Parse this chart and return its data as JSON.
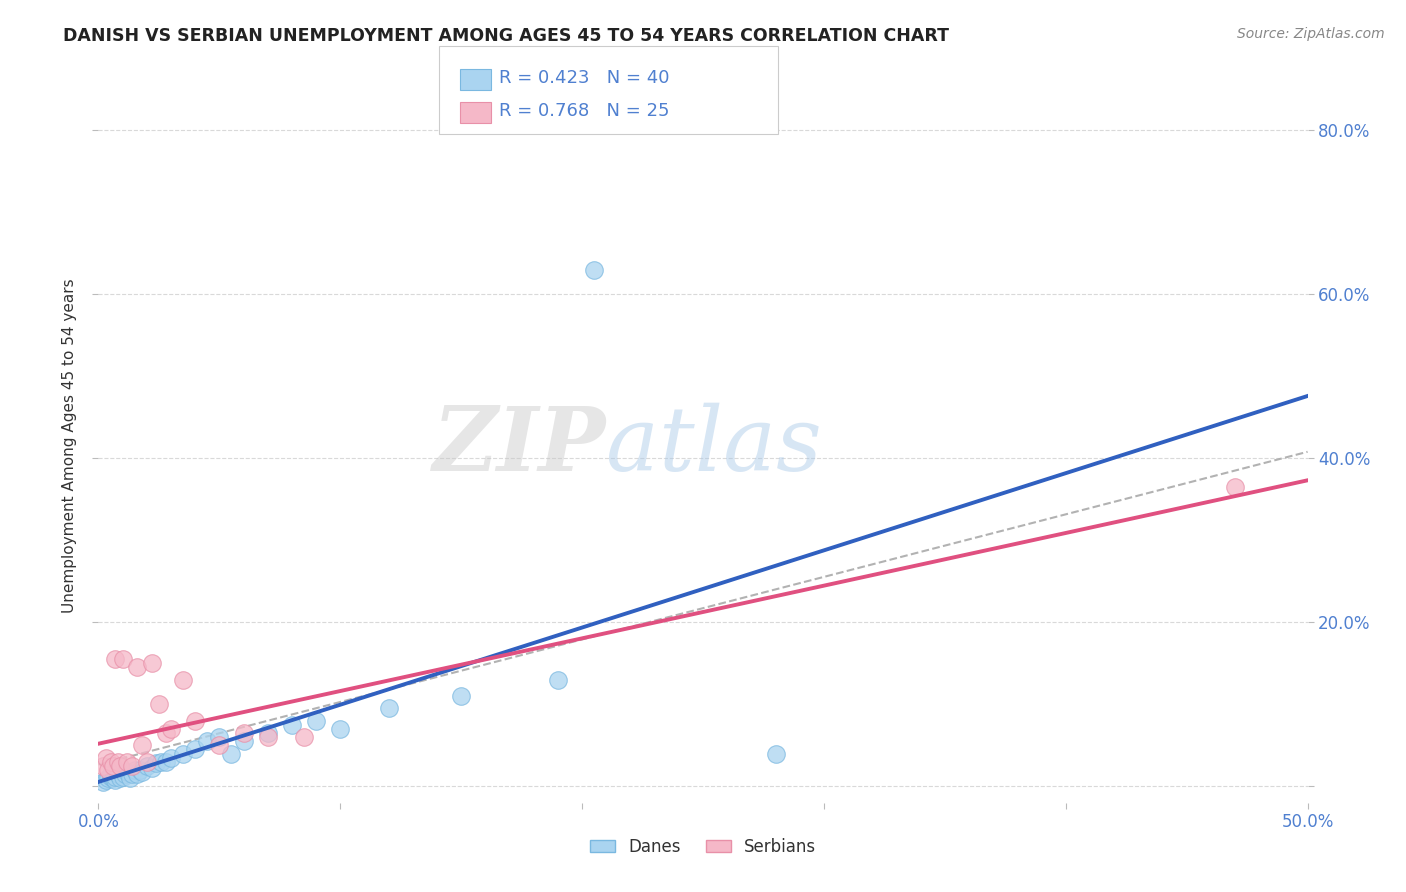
{
  "title": "DANISH VS SERBIAN UNEMPLOYMENT AMONG AGES 45 TO 54 YEARS CORRELATION CHART",
  "source": "Source: ZipAtlas.com",
  "ylabel": "Unemployment Among Ages 45 to 54 years",
  "xlim": [
    0.0,
    0.5
  ],
  "ylim": [
    -0.02,
    0.85
  ],
  "xticks": [
    0.0,
    0.1,
    0.2,
    0.3,
    0.4,
    0.5
  ],
  "xticklabels": [
    "0.0%",
    "",
    "",
    "",
    "",
    "50.0%"
  ],
  "yticks": [
    0.0,
    0.2,
    0.4,
    0.6,
    0.8
  ],
  "yticklabels": [
    "",
    "20.0%",
    "40.0%",
    "60.0%",
    "80.0%"
  ],
  "danes_x": [
    0.002,
    0.003,
    0.004,
    0.005,
    0.005,
    0.006,
    0.007,
    0.007,
    0.008,
    0.009,
    0.01,
    0.011,
    0.012,
    0.013,
    0.014,
    0.015,
    0.016,
    0.017,
    0.018,
    0.02,
    0.022,
    0.024,
    0.026,
    0.028,
    0.03,
    0.035,
    0.04,
    0.045,
    0.05,
    0.055,
    0.06,
    0.07,
    0.08,
    0.09,
    0.1,
    0.12,
    0.15,
    0.19,
    0.205,
    0.28
  ],
  "danes_y": [
    0.005,
    0.008,
    0.01,
    0.012,
    0.015,
    0.01,
    0.008,
    0.012,
    0.015,
    0.01,
    0.012,
    0.015,
    0.018,
    0.01,
    0.015,
    0.02,
    0.015,
    0.02,
    0.018,
    0.025,
    0.022,
    0.028,
    0.03,
    0.03,
    0.035,
    0.04,
    0.045,
    0.055,
    0.06,
    0.04,
    0.055,
    0.065,
    0.075,
    0.08,
    0.07,
    0.095,
    0.11,
    0.13,
    0.63,
    0.04
  ],
  "serbians_x": [
    0.002,
    0.003,
    0.004,
    0.005,
    0.006,
    0.007,
    0.008,
    0.009,
    0.01,
    0.012,
    0.014,
    0.016,
    0.018,
    0.02,
    0.022,
    0.025,
    0.028,
    0.03,
    0.035,
    0.04,
    0.05,
    0.06,
    0.07,
    0.085,
    0.47
  ],
  "serbians_y": [
    0.025,
    0.035,
    0.02,
    0.03,
    0.025,
    0.155,
    0.03,
    0.025,
    0.155,
    0.03,
    0.025,
    0.145,
    0.05,
    0.03,
    0.15,
    0.1,
    0.065,
    0.07,
    0.13,
    0.08,
    0.05,
    0.065,
    0.06,
    0.06,
    0.365
  ],
  "danes_color": "#aad4f0",
  "serbians_color": "#f5b8c8",
  "danes_edge_color": "#7ab8e0",
  "serbians_edge_color": "#e890a8",
  "danes_line_color": "#3060c0",
  "serbians_line_color": "#e05080",
  "danes_R": 0.423,
  "danes_N": 40,
  "serbians_R": 0.768,
  "serbians_N": 25,
  "watermark_zip": "ZIP",
  "watermark_atlas": "atlas",
  "background_color": "#ffffff",
  "grid_color": "#d0d0d0",
  "title_color": "#222222",
  "axis_label_color": "#333333",
  "tick_color": "#5080d0",
  "source_color": "#888888"
}
